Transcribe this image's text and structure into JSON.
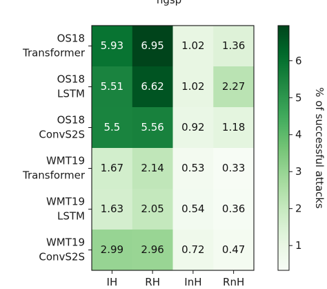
{
  "chart_data": {
    "type": "heatmap",
    "title": "",
    "rows": [
      [
        "OS18",
        "Transformer"
      ],
      [
        "OS18",
        "LSTM"
      ],
      [
        "OS18",
        "ConvS2S"
      ],
      [
        "WMT19",
        "Transformer"
      ],
      [
        "WMT19",
        "LSTM"
      ],
      [
        "WMT19",
        "ConvS2S"
      ]
    ],
    "columns": [
      "IH",
      "RH",
      "InH",
      "RnH"
    ],
    "values": [
      [
        5.93,
        6.95,
        1.02,
        1.36
      ],
      [
        5.51,
        6.62,
        1.02,
        2.27
      ],
      [
        5.5,
        5.56,
        0.92,
        1.18
      ],
      [
        1.67,
        2.14,
        0.53,
        0.33
      ],
      [
        1.63,
        2.05,
        0.54,
        0.36
      ],
      [
        2.99,
        2.96,
        0.72,
        0.47
      ]
    ],
    "value_labels": [
      [
        "5.93",
        "6.95",
        "1.02",
        "1.36"
      ],
      [
        "5.51",
        "6.62",
        "1.02",
        "2.27"
      ],
      [
        "5.5",
        "5.56",
        "0.92",
        "1.18"
      ],
      [
        "1.67",
        "2.14",
        "0.53",
        "0.33"
      ],
      [
        "1.63",
        "2.05",
        "0.54",
        "0.36"
      ],
      [
        "2.99",
        "2.96",
        "0.72",
        "0.47"
      ]
    ],
    "colorbar": {
      "label": "% of successful attacks",
      "ticks": [
        1,
        2,
        3,
        4,
        5,
        6
      ],
      "range": [
        0.33,
        6.95
      ],
      "colormap": "Greens",
      "low_color": "#f7fcf5",
      "high_color": "#00441b"
    },
    "partial_top_text": "ngsp"
  }
}
